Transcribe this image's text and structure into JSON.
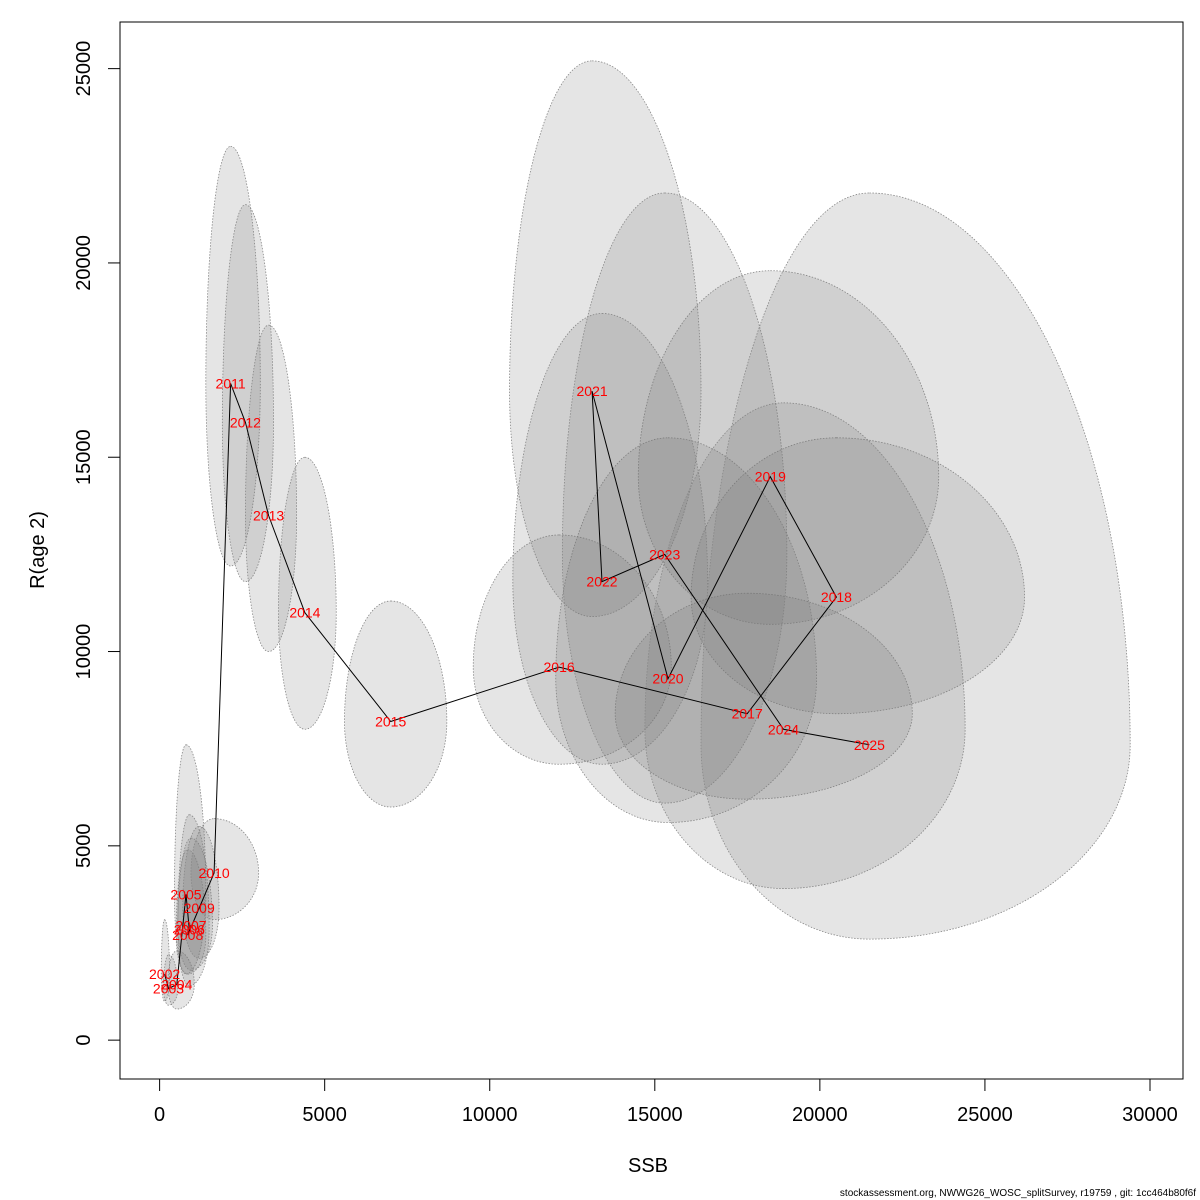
{
  "chart_data": {
    "type": "scatter",
    "xlabel": "SSB",
    "ylabel": "R(age 2)",
    "xlim": [
      -1200,
      31000
    ],
    "ylim": [
      -1000,
      26200
    ],
    "xticks": [
      0,
      5000,
      10000,
      15000,
      20000,
      25000,
      30000
    ],
    "xtick_labels": [
      "0",
      "5000",
      "10000",
      "15000",
      "20000",
      "25000",
      "30000"
    ],
    "yticks": [
      0,
      5000,
      10000,
      15000,
      20000,
      25000
    ],
    "ytick_labels": [
      "0",
      "5000",
      "10000",
      "15000",
      "20000",
      "25000"
    ],
    "colors": {
      "labels": "#ff0000",
      "line": "#000000",
      "ellipse_fill": "#e5e5e5",
      "ellipse_stroke": "#888888"
    },
    "points": [
      {
        "year": "2002",
        "x": 150,
        "y": 1700,
        "lo_x": 50,
        "hi_x": 300,
        "lo_y": 1000,
        "hi_y": 3100
      },
      {
        "year": "2003",
        "x": 270,
        "y": 1330,
        "lo_x": 120,
        "hi_x": 550,
        "lo_y": 900,
        "hi_y": 2200
      },
      {
        "year": "2004",
        "x": 520,
        "y": 1430,
        "lo_x": 250,
        "hi_x": 1050,
        "lo_y": 800,
        "hi_y": 2300
      },
      {
        "year": "2005",
        "x": 800,
        "y": 3750,
        "lo_x": 450,
        "hi_x": 1400,
        "lo_y": 1700,
        "hi_y": 7600
      },
      {
        "year": "2006",
        "x": 900,
        "y": 2850,
        "lo_x": 550,
        "hi_x": 1500,
        "lo_y": 1400,
        "hi_y": 5800
      },
      {
        "year": "2007",
        "x": 950,
        "y": 2950,
        "lo_x": 550,
        "hi_x": 1600,
        "lo_y": 1800,
        "hi_y": 5200
      },
      {
        "year": "2008",
        "x": 850,
        "y": 2700,
        "lo_x": 500,
        "hi_x": 1400,
        "lo_y": 1700,
        "hi_y": 4900
      },
      {
        "year": "2009",
        "x": 1200,
        "y": 3400,
        "lo_x": 700,
        "hi_x": 1800,
        "lo_y": 2100,
        "hi_y": 5500
      },
      {
        "year": "2010",
        "x": 1650,
        "y": 4300,
        "lo_x": 950,
        "hi_x": 3000,
        "lo_y": 3100,
        "hi_y": 5700
      },
      {
        "year": "2011",
        "x": 2150,
        "y": 16900,
        "lo_x": 1400,
        "hi_x": 3050,
        "lo_y": 12200,
        "hi_y": 23000
      },
      {
        "year": "2012",
        "x": 2600,
        "y": 15900,
        "lo_x": 1900,
        "hi_x": 3450,
        "lo_y": 11800,
        "hi_y": 21500
      },
      {
        "year": "2013",
        "x": 3300,
        "y": 13500,
        "lo_x": 2600,
        "hi_x": 4150,
        "lo_y": 10000,
        "hi_y": 18400
      },
      {
        "year": "2014",
        "x": 4400,
        "y": 11000,
        "lo_x": 3600,
        "hi_x": 5350,
        "lo_y": 8000,
        "hi_y": 15000
      },
      {
        "year": "2015",
        "x": 7000,
        "y": 8200,
        "lo_x": 5600,
        "hi_x": 8700,
        "lo_y": 6000,
        "hi_y": 11300
      },
      {
        "year": "2016",
        "x": 12100,
        "y": 9600,
        "lo_x": 9500,
        "hi_x": 15500,
        "lo_y": 7100,
        "hi_y": 13000
      },
      {
        "year": "2017",
        "x": 17800,
        "y": 8400,
        "lo_x": 13800,
        "hi_x": 22800,
        "lo_y": 6200,
        "hi_y": 11500
      },
      {
        "year": "2018",
        "x": 20500,
        "y": 11400,
        "lo_x": 16100,
        "hi_x": 26200,
        "lo_y": 8400,
        "hi_y": 15500
      },
      {
        "year": "2019",
        "x": 18500,
        "y": 14500,
        "lo_x": 14500,
        "hi_x": 23600,
        "lo_y": 10700,
        "hi_y": 19800
      },
      {
        "year": "2020",
        "x": 15400,
        "y": 9300,
        "lo_x": 12000,
        "hi_x": 19900,
        "lo_y": 5600,
        "hi_y": 15500
      },
      {
        "year": "2021",
        "x": 13100,
        "y": 16700,
        "lo_x": 10600,
        "hi_x": 16400,
        "lo_y": 10900,
        "hi_y": 25200
      },
      {
        "year": "2022",
        "x": 13400,
        "y": 11800,
        "lo_x": 10700,
        "hi_x": 16600,
        "lo_y": 7100,
        "hi_y": 18700
      },
      {
        "year": "2023",
        "x": 15300,
        "y": 12500,
        "lo_x": 12200,
        "hi_x": 19000,
        "lo_y": 6100,
        "hi_y": 21800
      },
      {
        "year": "2024",
        "x": 18900,
        "y": 8000,
        "lo_x": 14700,
        "hi_x": 24400,
        "lo_y": 3900,
        "hi_y": 16400
      },
      {
        "year": "2025",
        "x": 21500,
        "y": 7600,
        "lo_x": 16400,
        "hi_x": 29400,
        "lo_y": 2600,
        "hi_y": 21800
      }
    ]
  },
  "footer": "stockassessment.org, NWWG26_WOSC_splitSurvey, r19759 , git: 1cc464b80f6f"
}
